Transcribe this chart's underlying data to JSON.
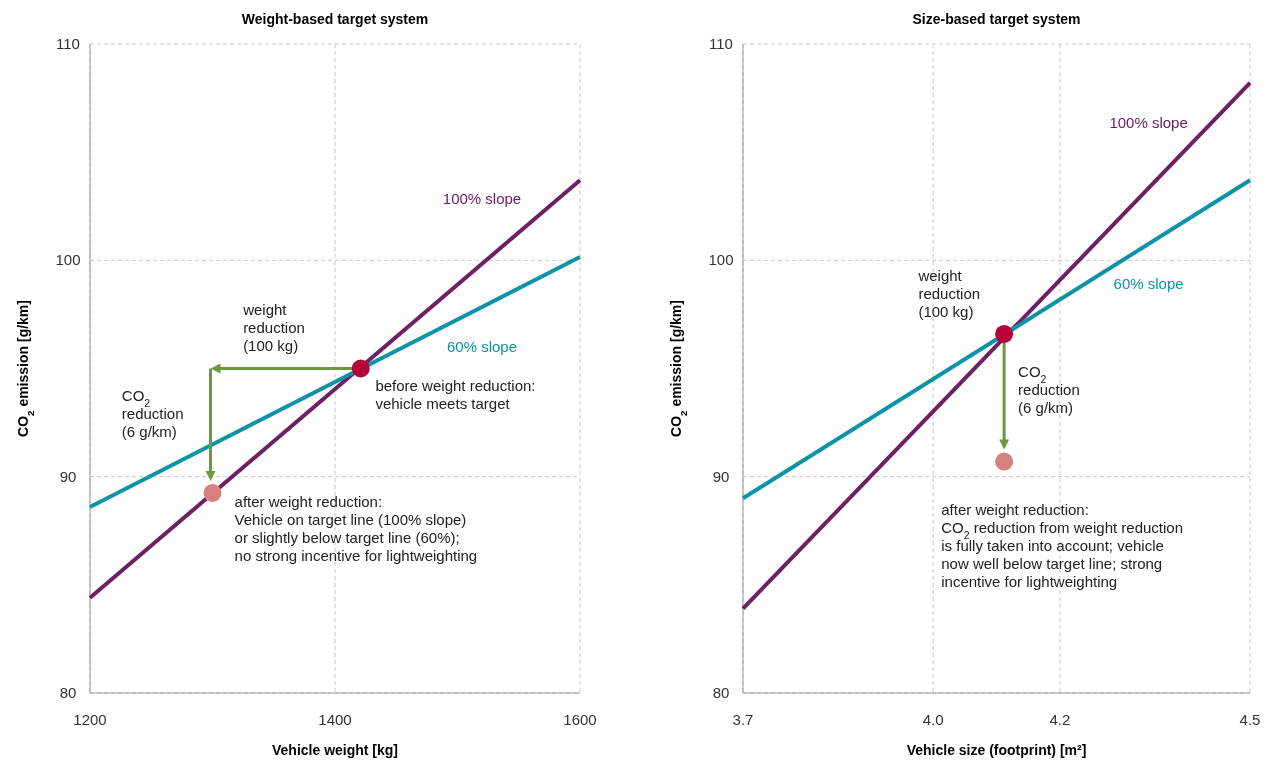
{
  "chart_data": [
    {
      "type": "line",
      "title": "Weight-based target system",
      "xlabel": "Vehicle weight [kg]",
      "ylabel": "CO$_{2}$ emission [g/km]",
      "xlim": [
        1200,
        1600
      ],
      "ylim": [
        80,
        110
      ],
      "xticks": [
        1200,
        1400,
        1600
      ],
      "yticks": [
        80,
        90,
        100,
        110
      ],
      "grid": true,
      "series": [
        {
          "name": "100% slope",
          "color": "#6b2163",
          "x": [
            1200,
            1600
          ],
          "values": [
            84.4,
            103.7
          ]
        },
        {
          "name": "60% slope",
          "color": "#0e93a6",
          "x": [
            1200,
            1600
          ],
          "values": [
            88.6,
            100.15
          ]
        },
        {
          "type": "scatter",
          "color": "#b5003a",
          "x": [
            1421
          ],
          "values": [
            95
          ]
        },
        {
          "type": "scatter",
          "color": "#d98080",
          "x": [
            1300
          ],
          "values": [
            89.25
          ]
        }
      ],
      "annotations": [
        "weight\nreduction\n(100 kg)",
        "before weight reduction:\nvehicle meets target",
        "CO$_{2}$\nreduction\n(6 g/km)",
        "after weight reduction:\nVehicle on target line (100% slope)\nor slightly below target line (60%);\nno strong incentive for lightweighting"
      ]
    },
    {
      "type": "line",
      "title": "Size-based target system",
      "xlabel": "Vehicle size (footprint) [m²]",
      "ylabel": "CO$_{2}$ emission [g/km]",
      "xlim": [
        3.7,
        4.5
      ],
      "ylim": [
        80,
        110
      ],
      "xticks": [
        3.7,
        {
          "value": 4,
          "label": "4.0"
        },
        4.2,
        4.5
      ],
      "yticks": [
        80,
        90,
        100,
        110
      ],
      "grid": true,
      "series": [
        {
          "name": "100% slope",
          "color": "#6b2163",
          "x": [
            3.7,
            4.5
          ],
          "values": [
            83.9,
            108.2
          ]
        },
        {
          "name": "60% slope",
          "color": "#0e93a6",
          "x": [
            3.7,
            4.5
          ],
          "values": [
            89.0,
            103.7
          ]
        },
        {
          "type": "scatter",
          "color": "#b5003a",
          "x": [
            4.112
          ],
          "values": [
            96.6
          ]
        },
        {
          "type": "scatter",
          "color": "#d98080",
          "x": [
            4.112
          ],
          "values": [
            90.7
          ]
        }
      ],
      "annotations": [
        "weight\nreduction\n(100 kg)",
        "CO$_{2}$\nreduction\n(6 g/km)",
        "after weight reduction:\nCO$_{2}$ reduction from weight reduction\nis fully taken into account; vehicle\nnow well below target line; strong\nincentive for lightweighting"
      ]
    }
  ]
}
